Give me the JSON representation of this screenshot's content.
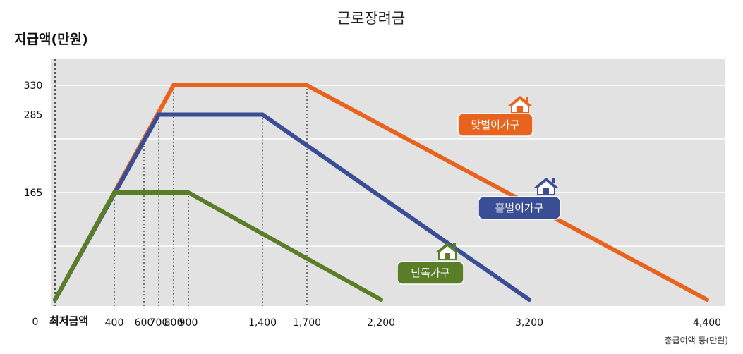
{
  "chart_data": {
    "type": "line",
    "title": "근로장려금",
    "ylabel": "지급액(만원)",
    "xlabel": "총급여액 등(만원)",
    "x_start_label": "최저금액",
    "y_zero_label": "0",
    "ylim": [
      0,
      330
    ],
    "xlim": [
      0,
      4400
    ],
    "y_ticks": [
      {
        "value": 330,
        "label": "330"
      },
      {
        "value": 285,
        "label": "285"
      },
      {
        "value": 165,
        "label": "165"
      }
    ],
    "x_ticks": [
      {
        "value": 400,
        "label": "400"
      },
      {
        "value": 600,
        "label": "600"
      },
      {
        "value": 700,
        "label": "700"
      },
      {
        "value": 800,
        "label": "800"
      },
      {
        "value": 900,
        "label": "900"
      },
      {
        "value": 1400,
        "label": "1,400"
      },
      {
        "value": 1700,
        "label": "1,700"
      },
      {
        "value": 2200,
        "label": "2,200"
      },
      {
        "value": 3200,
        "label": "3,200"
      },
      {
        "value": 4400,
        "label": "4,400"
      }
    ],
    "series": [
      {
        "name": "맞벌이가구",
        "color": "#e8641e",
        "points": [
          [
            0,
            0
          ],
          [
            800,
            330
          ],
          [
            1700,
            330
          ],
          [
            4400,
            0
          ]
        ]
      },
      {
        "name": "홑벌이가구",
        "color": "#3a4e96",
        "points": [
          [
            0,
            0
          ],
          [
            700,
            285
          ],
          [
            1400,
            285
          ],
          [
            3200,
            0
          ]
        ]
      },
      {
        "name": "단독가구",
        "color": "#5a7d28",
        "points": [
          [
            0,
            0
          ],
          [
            400,
            165
          ],
          [
            900,
            165
          ],
          [
            2200,
            0
          ]
        ]
      }
    ],
    "grid": true,
    "legend": "inline labels"
  }
}
